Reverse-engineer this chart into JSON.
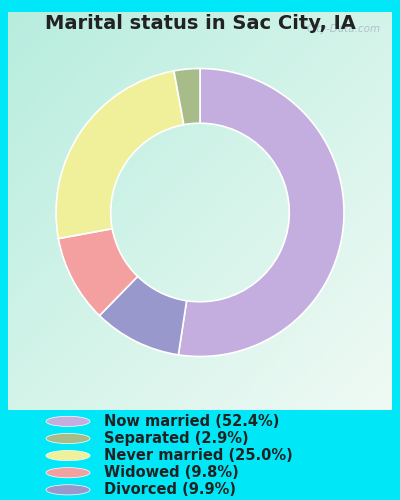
{
  "title": "Marital status in Sac City, IA",
  "slices": [
    52.4,
    9.9,
    9.8,
    25.0,
    2.9
  ],
  "labels": [
    "Now married (52.4%)",
    "Separated (2.9%)",
    "Never married (25.0%)",
    "Widowed (9.8%)",
    "Divorced (9.9%)"
  ],
  "legend_order": [
    0,
    4,
    3,
    2,
    1
  ],
  "legend_labels": [
    "Now married (52.4%)",
    "Separated (2.9%)",
    "Never married (25.0%)",
    "Widowed (9.8%)",
    "Divorced (9.9%)"
  ],
  "legend_colors": [
    "#c4aee0",
    "#a8bc8a",
    "#f0f09a",
    "#f4a0a0",
    "#9898cc"
  ],
  "colors": [
    "#c4aee0",
    "#9898cc",
    "#f4a0a0",
    "#f0f09a",
    "#a8bc8a"
  ],
  "outer_bg": "#00e8f8",
  "title_color": "#222222",
  "title_fontsize": 14,
  "watermark": "City-Data.com",
  "legend_fontsize": 10.5,
  "donut_width": 0.38
}
